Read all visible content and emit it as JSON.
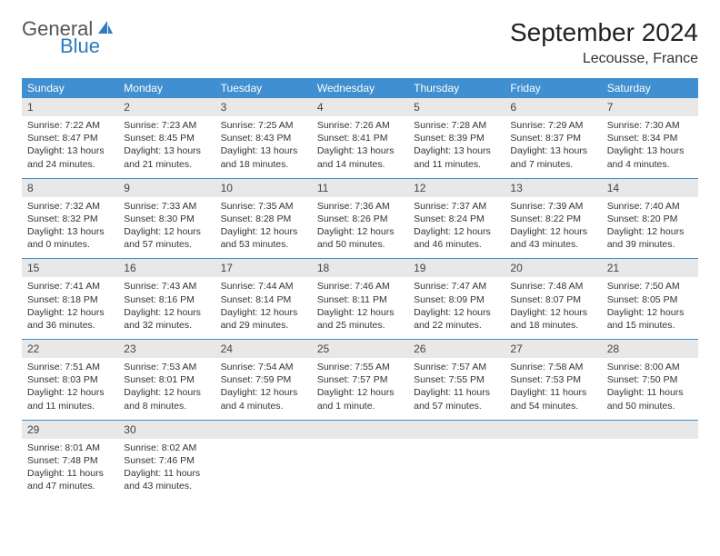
{
  "logo": {
    "text1": "General",
    "text2": "Blue"
  },
  "title": "September 2024",
  "location": "Lecousse, France",
  "colors": {
    "header_bg": "#3f8fd1",
    "header_text": "#ffffff",
    "daynum_bg": "#e8e8e8",
    "text": "#333333",
    "rule": "#3f8fd1",
    "logo_blue": "#2d7bc0"
  },
  "typography": {
    "title_fontsize": 28,
    "location_fontsize": 16,
    "weekday_fontsize": 12,
    "daynum_fontsize": 12,
    "cell_fontsize": 10.5
  },
  "weekdays": [
    "Sunday",
    "Monday",
    "Tuesday",
    "Wednesday",
    "Thursday",
    "Friday",
    "Saturday"
  ],
  "weeks": [
    [
      {
        "n": "1",
        "sunrise": "Sunrise: 7:22 AM",
        "sunset": "Sunset: 8:47 PM",
        "day": "Daylight: 13 hours and 24 minutes."
      },
      {
        "n": "2",
        "sunrise": "Sunrise: 7:23 AM",
        "sunset": "Sunset: 8:45 PM",
        "day": "Daylight: 13 hours and 21 minutes."
      },
      {
        "n": "3",
        "sunrise": "Sunrise: 7:25 AM",
        "sunset": "Sunset: 8:43 PM",
        "day": "Daylight: 13 hours and 18 minutes."
      },
      {
        "n": "4",
        "sunrise": "Sunrise: 7:26 AM",
        "sunset": "Sunset: 8:41 PM",
        "day": "Daylight: 13 hours and 14 minutes."
      },
      {
        "n": "5",
        "sunrise": "Sunrise: 7:28 AM",
        "sunset": "Sunset: 8:39 PM",
        "day": "Daylight: 13 hours and 11 minutes."
      },
      {
        "n": "6",
        "sunrise": "Sunrise: 7:29 AM",
        "sunset": "Sunset: 8:37 PM",
        "day": "Daylight: 13 hours and 7 minutes."
      },
      {
        "n": "7",
        "sunrise": "Sunrise: 7:30 AM",
        "sunset": "Sunset: 8:34 PM",
        "day": "Daylight: 13 hours and 4 minutes."
      }
    ],
    [
      {
        "n": "8",
        "sunrise": "Sunrise: 7:32 AM",
        "sunset": "Sunset: 8:32 PM",
        "day": "Daylight: 13 hours and 0 minutes."
      },
      {
        "n": "9",
        "sunrise": "Sunrise: 7:33 AM",
        "sunset": "Sunset: 8:30 PM",
        "day": "Daylight: 12 hours and 57 minutes."
      },
      {
        "n": "10",
        "sunrise": "Sunrise: 7:35 AM",
        "sunset": "Sunset: 8:28 PM",
        "day": "Daylight: 12 hours and 53 minutes."
      },
      {
        "n": "11",
        "sunrise": "Sunrise: 7:36 AM",
        "sunset": "Sunset: 8:26 PM",
        "day": "Daylight: 12 hours and 50 minutes."
      },
      {
        "n": "12",
        "sunrise": "Sunrise: 7:37 AM",
        "sunset": "Sunset: 8:24 PM",
        "day": "Daylight: 12 hours and 46 minutes."
      },
      {
        "n": "13",
        "sunrise": "Sunrise: 7:39 AM",
        "sunset": "Sunset: 8:22 PM",
        "day": "Daylight: 12 hours and 43 minutes."
      },
      {
        "n": "14",
        "sunrise": "Sunrise: 7:40 AM",
        "sunset": "Sunset: 8:20 PM",
        "day": "Daylight: 12 hours and 39 minutes."
      }
    ],
    [
      {
        "n": "15",
        "sunrise": "Sunrise: 7:41 AM",
        "sunset": "Sunset: 8:18 PM",
        "day": "Daylight: 12 hours and 36 minutes."
      },
      {
        "n": "16",
        "sunrise": "Sunrise: 7:43 AM",
        "sunset": "Sunset: 8:16 PM",
        "day": "Daylight: 12 hours and 32 minutes."
      },
      {
        "n": "17",
        "sunrise": "Sunrise: 7:44 AM",
        "sunset": "Sunset: 8:14 PM",
        "day": "Daylight: 12 hours and 29 minutes."
      },
      {
        "n": "18",
        "sunrise": "Sunrise: 7:46 AM",
        "sunset": "Sunset: 8:11 PM",
        "day": "Daylight: 12 hours and 25 minutes."
      },
      {
        "n": "19",
        "sunrise": "Sunrise: 7:47 AM",
        "sunset": "Sunset: 8:09 PM",
        "day": "Daylight: 12 hours and 22 minutes."
      },
      {
        "n": "20",
        "sunrise": "Sunrise: 7:48 AM",
        "sunset": "Sunset: 8:07 PM",
        "day": "Daylight: 12 hours and 18 minutes."
      },
      {
        "n": "21",
        "sunrise": "Sunrise: 7:50 AM",
        "sunset": "Sunset: 8:05 PM",
        "day": "Daylight: 12 hours and 15 minutes."
      }
    ],
    [
      {
        "n": "22",
        "sunrise": "Sunrise: 7:51 AM",
        "sunset": "Sunset: 8:03 PM",
        "day": "Daylight: 12 hours and 11 minutes."
      },
      {
        "n": "23",
        "sunrise": "Sunrise: 7:53 AM",
        "sunset": "Sunset: 8:01 PM",
        "day": "Daylight: 12 hours and 8 minutes."
      },
      {
        "n": "24",
        "sunrise": "Sunrise: 7:54 AM",
        "sunset": "Sunset: 7:59 PM",
        "day": "Daylight: 12 hours and 4 minutes."
      },
      {
        "n": "25",
        "sunrise": "Sunrise: 7:55 AM",
        "sunset": "Sunset: 7:57 PM",
        "day": "Daylight: 12 hours and 1 minute."
      },
      {
        "n": "26",
        "sunrise": "Sunrise: 7:57 AM",
        "sunset": "Sunset: 7:55 PM",
        "day": "Daylight: 11 hours and 57 minutes."
      },
      {
        "n": "27",
        "sunrise": "Sunrise: 7:58 AM",
        "sunset": "Sunset: 7:53 PM",
        "day": "Daylight: 11 hours and 54 minutes."
      },
      {
        "n": "28",
        "sunrise": "Sunrise: 8:00 AM",
        "sunset": "Sunset: 7:50 PM",
        "day": "Daylight: 11 hours and 50 minutes."
      }
    ],
    [
      {
        "n": "29",
        "sunrise": "Sunrise: 8:01 AM",
        "sunset": "Sunset: 7:48 PM",
        "day": "Daylight: 11 hours and 47 minutes."
      },
      {
        "n": "30",
        "sunrise": "Sunrise: 8:02 AM",
        "sunset": "Sunset: 7:46 PM",
        "day": "Daylight: 11 hours and 43 minutes."
      },
      null,
      null,
      null,
      null,
      null
    ]
  ]
}
